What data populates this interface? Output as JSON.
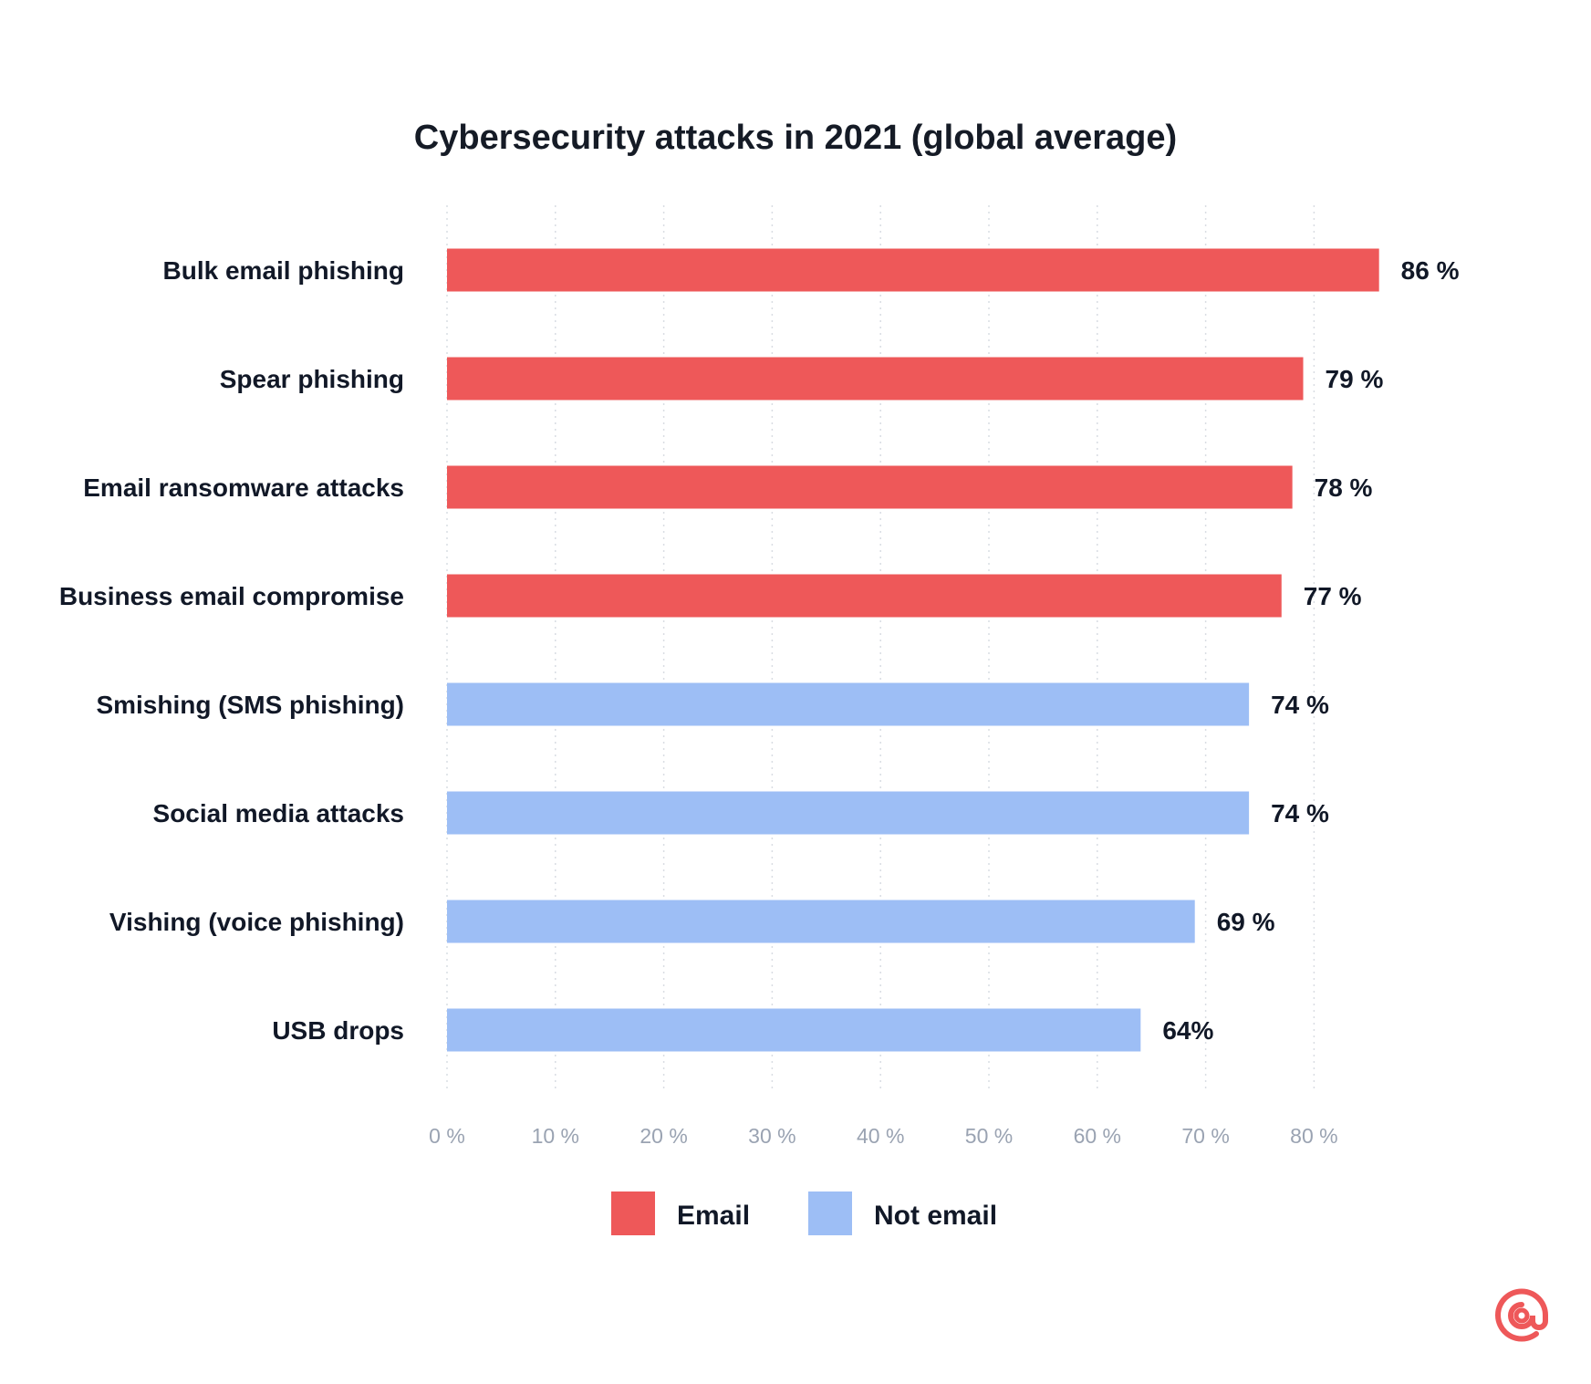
{
  "chart_data": {
    "type": "bar",
    "orientation": "horizontal",
    "title": "Cybersecurity attacks in 2021 (global average)",
    "xlabel": "",
    "ylabel": "",
    "xlim": [
      0,
      80
    ],
    "grid": "vertical dotted",
    "categories": [
      "Bulk email phishing",
      "Spear phishing",
      "Email ransomware attacks",
      "Business email compromise",
      "Smishing (SMS phishing)",
      "Social media attacks",
      "Vishing (voice phishing)",
      "USB drops"
    ],
    "values": [
      86,
      79,
      78,
      77,
      74,
      74,
      69,
      64
    ],
    "value_labels": [
      "86 %",
      "79 %",
      "78 %",
      "77 %",
      "74 %",
      "74 %",
      "69 %",
      "64%"
    ],
    "groups": [
      "Email",
      "Email",
      "Email",
      "Email",
      "Not email",
      "Not email",
      "Not email",
      "Not email"
    ],
    "x_ticks": [
      0,
      10,
      20,
      30,
      40,
      50,
      60,
      70,
      80
    ],
    "x_tick_labels": [
      "0 %",
      "10 %",
      "20 %",
      "30 %",
      "40 %",
      "50 %",
      "60 %",
      "70 %",
      "80 %"
    ],
    "legend": {
      "placement": "bottom",
      "entries": [
        {
          "name": "Email",
          "color": "#ee5859"
        },
        {
          "name": "Not email",
          "color": "#9dbef5"
        }
      ]
    }
  },
  "colors": {
    "email": "#ee5859",
    "not_email": "#9dbef5",
    "grid": "#d9dde3",
    "tick_text": "#9aa3b2",
    "brand": "#ee5859"
  },
  "brand": {
    "icon": "at-sign-icon"
  }
}
